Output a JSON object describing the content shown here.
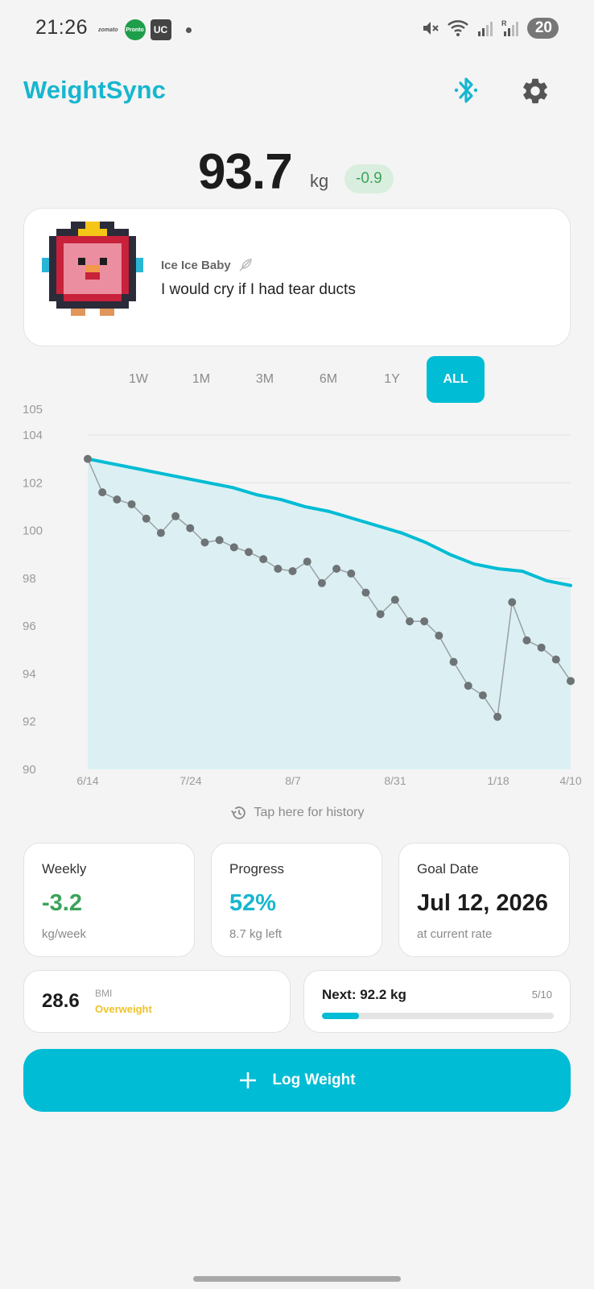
{
  "status_bar": {
    "time": "21:26",
    "apps": [
      "zomato",
      "Pronto",
      "UC"
    ],
    "battery": "20"
  },
  "header": {
    "title": "WeightSync"
  },
  "weight": {
    "value": "93.7",
    "unit": "kg",
    "delta": "-0.9",
    "delta_color": "#3ca35a"
  },
  "buddy": {
    "name": "Ice Ice Baby",
    "quote": "I would cry if I had tear ducts"
  },
  "range_tabs": [
    "1W",
    "1M",
    "3M",
    "6M",
    "1Y",
    "ALL"
  ],
  "active_range": "ALL",
  "chart_data": {
    "type": "line",
    "title": "",
    "xlabel": "",
    "ylabel": "",
    "ylim": [
      90,
      105
    ],
    "yticks": [
      90,
      92,
      94,
      96,
      98,
      100,
      102,
      104,
      105
    ],
    "xtick_labels": [
      "6/14",
      "7/24",
      "8/7",
      "8/31",
      "1/18",
      "4/10"
    ],
    "series": [
      {
        "name": "Weight",
        "color": "#6e7376",
        "values": [
          103.0,
          101.6,
          101.3,
          101.1,
          100.5,
          99.9,
          100.6,
          100.1,
          99.5,
          99.6,
          99.3,
          99.1,
          98.8,
          98.4,
          98.3,
          98.7,
          97.8,
          98.4,
          98.2,
          97.4,
          96.5,
          97.1,
          96.2,
          96.2,
          95.6,
          94.5,
          93.5,
          93.1,
          92.2,
          97.0,
          95.4,
          95.1,
          94.6,
          93.7
        ]
      },
      {
        "name": "Trend",
        "color": "#00bcd4",
        "values": [
          103.0,
          102.8,
          102.6,
          102.4,
          102.2,
          102.0,
          101.8,
          101.5,
          101.3,
          101.0,
          100.8,
          100.5,
          100.2,
          99.9,
          99.5,
          99.0,
          98.6,
          98.4,
          98.3,
          97.9,
          97.7
        ]
      }
    ]
  },
  "history_link": "Tap here for history",
  "stats": {
    "weekly": {
      "label": "Weekly",
      "value": "-3.2",
      "sub": "kg/week",
      "color": "#3ca35a"
    },
    "progress": {
      "label": "Progress",
      "value": "52%",
      "sub": "8.7 kg left",
      "color": "#17b6cf"
    },
    "goal": {
      "label": "Goal Date",
      "value": "Jul 12, 2026",
      "sub": "at current rate",
      "color": "#1c1c1c"
    }
  },
  "bmi": {
    "value": "28.6",
    "label": "BMI",
    "status": "Overweight"
  },
  "next": {
    "label": "Next: 92.2 kg",
    "count": "5/10",
    "progress": 0.16
  },
  "log_button": {
    "label": "Log Weight"
  }
}
